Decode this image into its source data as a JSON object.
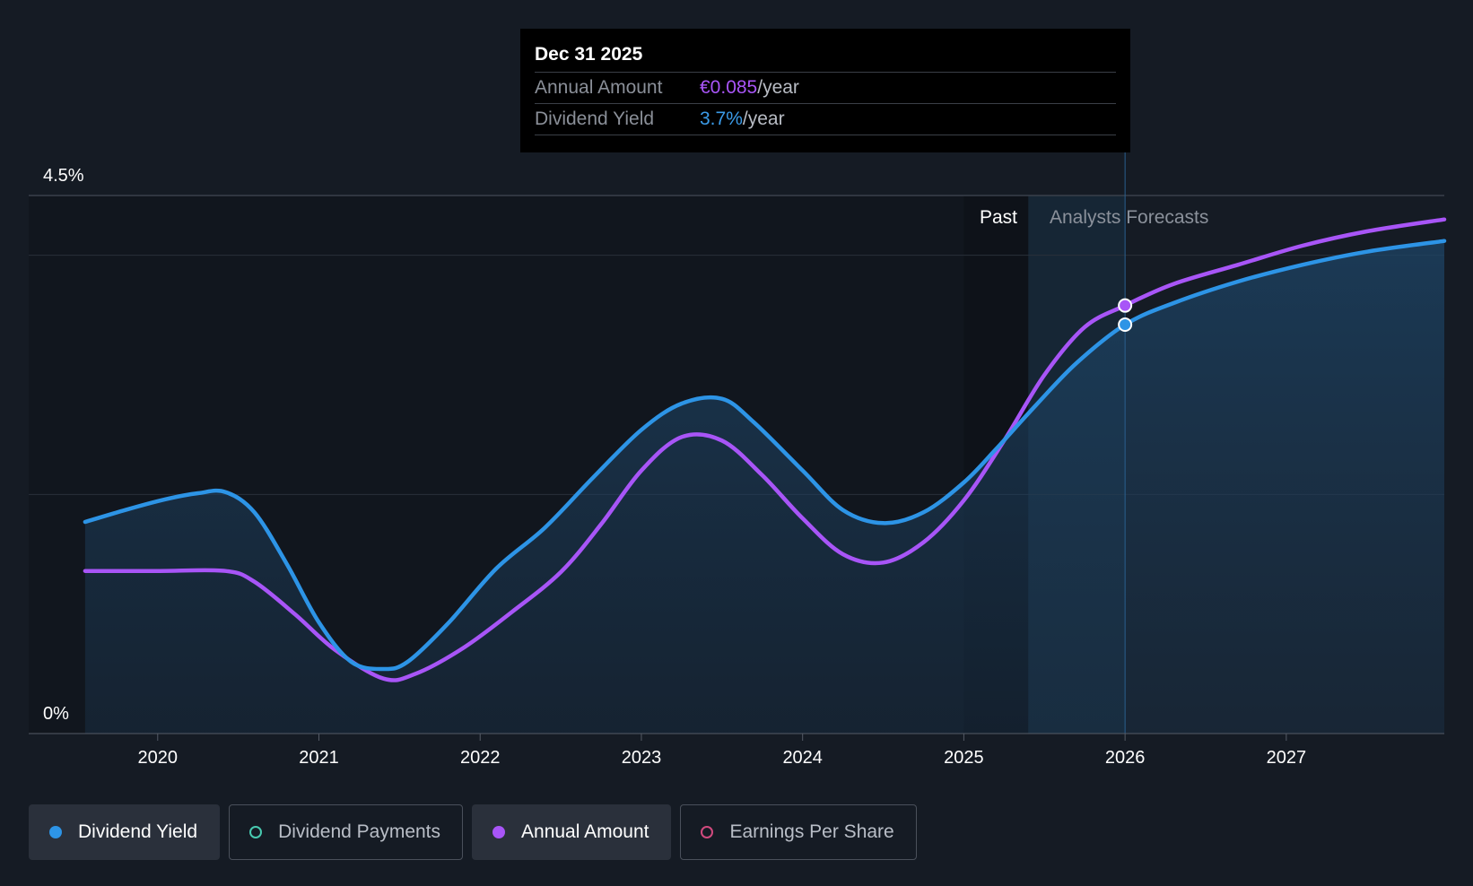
{
  "tooltip": {
    "date": "Dec 31 2025",
    "annual_amount_label": "Annual Amount",
    "annual_amount_value": "€0.085",
    "annual_amount_unit": "/year",
    "dividend_yield_label": "Dividend Yield",
    "dividend_yield_value": "3.7%",
    "dividend_yield_unit": "/year"
  },
  "regions": {
    "past_label": "Past",
    "forecast_label": "Analysts Forecasts"
  },
  "legend": [
    {
      "label": "Dividend Yield",
      "active": true,
      "color": "#2d94e6",
      "filled": true
    },
    {
      "label": "Dividend Payments",
      "active": false,
      "color": "#48c9b0",
      "filled": false
    },
    {
      "label": "Annual Amount",
      "active": true,
      "color": "#a855f7",
      "filled": true
    },
    {
      "label": "Earnings Per Share",
      "active": false,
      "color": "#d04a7e",
      "filled": false
    }
  ],
  "chart_data": {
    "type": "line",
    "title": "",
    "y_tick_labels": [
      "0%",
      "4.5%"
    ],
    "ylim": [
      0,
      4.5
    ],
    "xlim": [
      2019.2,
      2027.98
    ],
    "x_tick_labels": [
      "2020",
      "2021",
      "2022",
      "2023",
      "2024",
      "2025",
      "2026",
      "2027"
    ],
    "x_ticks": [
      2020,
      2021,
      2022,
      2023,
      2024,
      2025,
      2026,
      2027
    ],
    "gridlines_y": [
      2.0,
      4.0
    ],
    "past_start": 2025.0,
    "forecast_start": 2025.4,
    "marker_x": 2026.0,
    "series": [
      {
        "name": "Dividend Yield",
        "color": "#2d94e6",
        "points": [
          [
            2019.55,
            1.77
          ],
          [
            2019.8,
            1.87
          ],
          [
            2020.05,
            1.96
          ],
          [
            2020.25,
            2.01
          ],
          [
            2020.42,
            2.02
          ],
          [
            2020.6,
            1.85
          ],
          [
            2020.8,
            1.42
          ],
          [
            2021.0,
            0.93
          ],
          [
            2021.2,
            0.6
          ],
          [
            2021.4,
            0.54
          ],
          [
            2021.55,
            0.6
          ],
          [
            2021.8,
            0.92
          ],
          [
            2022.1,
            1.38
          ],
          [
            2022.4,
            1.72
          ],
          [
            2022.7,
            2.14
          ],
          [
            2023.0,
            2.54
          ],
          [
            2023.25,
            2.76
          ],
          [
            2023.5,
            2.8
          ],
          [
            2023.7,
            2.6
          ],
          [
            2024.0,
            2.2
          ],
          [
            2024.25,
            1.87
          ],
          [
            2024.5,
            1.76
          ],
          [
            2024.75,
            1.85
          ],
          [
            2025.0,
            2.1
          ],
          [
            2025.2,
            2.38
          ],
          [
            2025.45,
            2.75
          ],
          [
            2025.7,
            3.1
          ],
          [
            2026.0,
            3.42
          ],
          [
            2026.3,
            3.6
          ],
          [
            2026.7,
            3.78
          ],
          [
            2027.1,
            3.92
          ],
          [
            2027.5,
            4.03
          ],
          [
            2027.98,
            4.12
          ]
        ]
      },
      {
        "name": "Annual Amount",
        "color": "#a855f7",
        "points": [
          [
            2019.55,
            1.36
          ],
          [
            2020.0,
            1.36
          ],
          [
            2020.42,
            1.36
          ],
          [
            2020.6,
            1.27
          ],
          [
            2020.85,
            1.0
          ],
          [
            2021.1,
            0.7
          ],
          [
            2021.4,
            0.46
          ],
          [
            2021.6,
            0.5
          ],
          [
            2021.9,
            0.72
          ],
          [
            2022.2,
            1.02
          ],
          [
            2022.5,
            1.35
          ],
          [
            2022.75,
            1.75
          ],
          [
            2023.0,
            2.2
          ],
          [
            2023.25,
            2.48
          ],
          [
            2023.5,
            2.45
          ],
          [
            2023.75,
            2.16
          ],
          [
            2024.0,
            1.8
          ],
          [
            2024.25,
            1.5
          ],
          [
            2024.5,
            1.43
          ],
          [
            2024.75,
            1.6
          ],
          [
            2025.0,
            1.95
          ],
          [
            2025.25,
            2.45
          ],
          [
            2025.5,
            3.0
          ],
          [
            2025.75,
            3.4
          ],
          [
            2026.0,
            3.58
          ],
          [
            2026.3,
            3.76
          ],
          [
            2026.7,
            3.92
          ],
          [
            2027.1,
            4.08
          ],
          [
            2027.5,
            4.2
          ],
          [
            2027.98,
            4.3
          ]
        ]
      }
    ]
  }
}
